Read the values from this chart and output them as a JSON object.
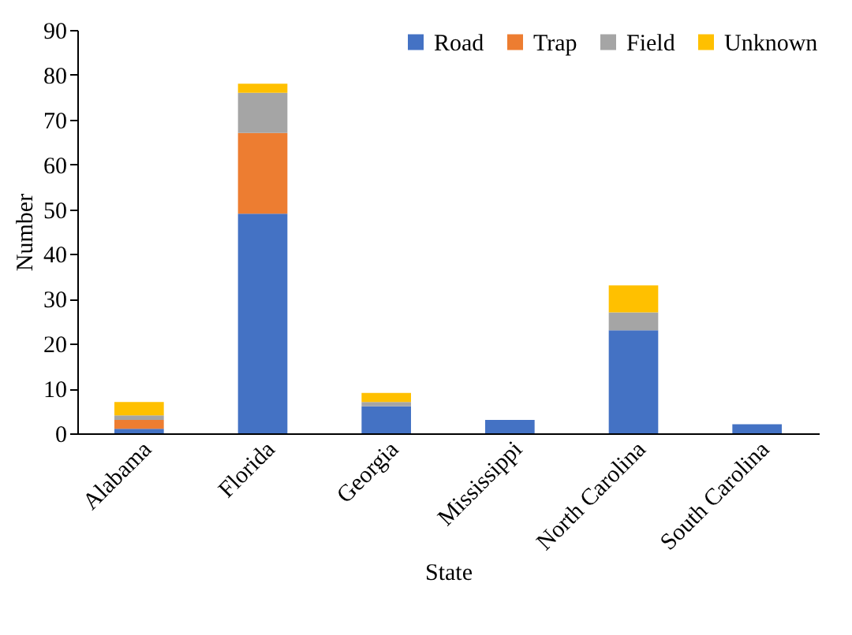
{
  "chart_data": {
    "type": "bar",
    "stacked": true,
    "xlabel": "State",
    "ylabel": "Number",
    "categories": [
      "Alabama",
      "Florida",
      "Georgia",
      "Mississippi",
      "North Carolina",
      "South Carolina"
    ],
    "series": [
      {
        "name": "Road",
        "color": "#4472c4",
        "values": [
          1,
          49,
          6,
          3,
          23,
          2
        ]
      },
      {
        "name": "Trap",
        "color": "#ed7d31",
        "values": [
          2,
          18,
          0,
          0,
          0,
          0
        ]
      },
      {
        "name": "Field",
        "color": "#a5a5a5",
        "values": [
          1,
          9,
          1,
          0,
          4,
          0
        ]
      },
      {
        "name": "Unknown",
        "color": "#ffc000",
        "values": [
          3,
          2,
          2,
          0,
          6,
          0
        ]
      }
    ],
    "ylim": [
      0,
      90
    ],
    "yticks": [
      0,
      10,
      20,
      30,
      40,
      50,
      60,
      70,
      80,
      90
    ],
    "grid": false,
    "legend": "top right"
  }
}
